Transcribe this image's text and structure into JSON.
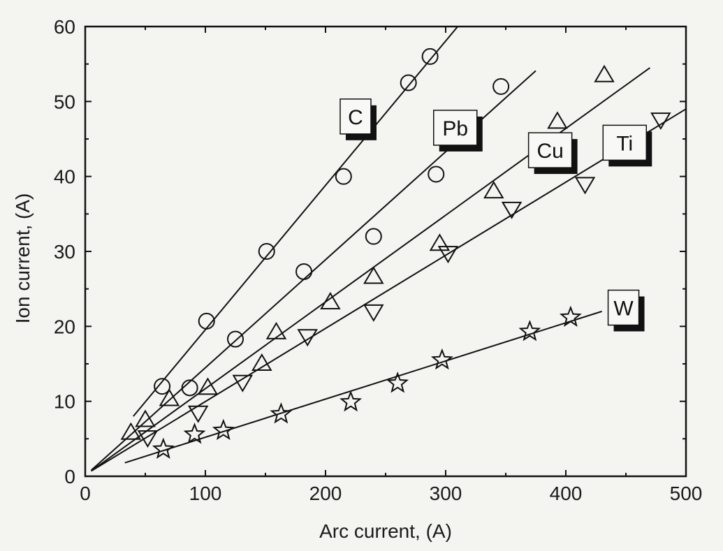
{
  "chart_data": {
    "type": "scatter",
    "xlabel": "Arc current, (A)",
    "ylabel": "Ion current, (A)",
    "xlim": [
      0,
      500
    ],
    "ylim": [
      0,
      60
    ],
    "xticks": [
      0,
      100,
      200,
      300,
      400,
      500
    ],
    "yticks": [
      0,
      10,
      20,
      30,
      40,
      50,
      60
    ],
    "x_tick_labels": [
      "0",
      "100",
      "200",
      "300",
      "400",
      "500"
    ],
    "y_tick_labels": [
      "0",
      "10",
      "20",
      "30",
      "40",
      "50",
      "60"
    ],
    "grid": false,
    "series": [
      {
        "name": "C",
        "marker": "circle",
        "points": [
          [
            64,
            12
          ],
          [
            87,
            11.8
          ],
          [
            101,
            20.7
          ],
          [
            125,
            18.3
          ],
          [
            151,
            30
          ],
          [
            182,
            27.3
          ],
          [
            215,
            40
          ],
          [
            240,
            32
          ],
          [
            269,
            52.5
          ],
          [
            287,
            56
          ]
        ],
        "fit": [
          [
            40,
            8
          ],
          [
            310,
            60
          ]
        ]
      },
      {
        "name": "Pb",
        "marker": "circle",
        "points": [
          [
            292,
            40.3
          ],
          [
            346,
            52
          ]
        ],
        "fit": [
          [
            5,
            0.8
          ],
          [
            375,
            54.1
          ]
        ]
      },
      {
        "name": "Cu",
        "marker": "triangle-up",
        "points": [
          [
            38,
            5.8
          ],
          [
            50,
            7.5
          ],
          [
            70,
            10.3
          ],
          [
            102,
            11.8
          ],
          [
            147,
            15
          ],
          [
            159,
            19.2
          ],
          [
            204,
            23.2
          ],
          [
            240,
            26.6
          ],
          [
            295,
            31
          ],
          [
            340,
            38
          ],
          [
            393,
            47.3
          ],
          [
            432,
            53.5
          ]
        ],
        "fit": [
          [
            5,
            0.7
          ],
          [
            470,
            54.5
          ]
        ]
      },
      {
        "name": "Ti",
        "marker": "triangle-down",
        "points": [
          [
            52,
            5.2
          ],
          [
            94,
            8.5
          ],
          [
            131,
            12.6
          ],
          [
            185,
            18.7
          ],
          [
            240,
            22
          ],
          [
            302,
            29.8
          ],
          [
            355,
            35.7
          ],
          [
            416,
            39
          ],
          [
            479,
            47.6
          ]
        ],
        "fit": [
          [
            5,
            0.7
          ],
          [
            500,
            49
          ]
        ]
      },
      {
        "name": "W",
        "marker": "star",
        "points": [
          [
            65,
            3.6
          ],
          [
            91,
            5.6
          ],
          [
            115,
            6.1
          ],
          [
            163,
            8.3
          ],
          [
            221,
            9.9
          ],
          [
            260,
            12.4
          ],
          [
            297,
            15.5
          ],
          [
            370,
            19.3
          ],
          [
            404,
            21.2
          ]
        ],
        "fit": [
          [
            33,
            1.8
          ],
          [
            430,
            22
          ]
        ]
      }
    ],
    "labels": [
      {
        "text": "C",
        "x": 225,
        "y": 48
      },
      {
        "text": "Pb",
        "x": 308,
        "y": 46.5
      },
      {
        "text": "Cu",
        "x": 387,
        "y": 43.5
      },
      {
        "text": "Ti",
        "x": 449,
        "y": 44.5
      },
      {
        "text": "W",
        "x": 448,
        "y": 22.5
      }
    ]
  }
}
